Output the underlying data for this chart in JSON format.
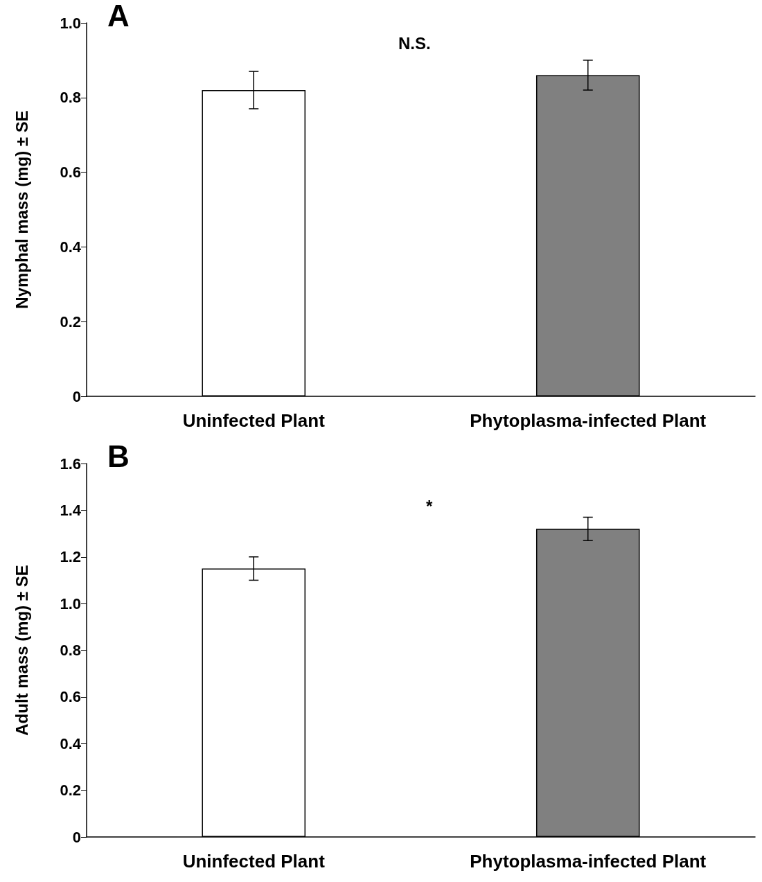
{
  "chart_data": [
    {
      "type": "bar",
      "categories": [
        "Uninfected Plant",
        "Phytoplasma-infected Plant"
      ],
      "values": [
        0.82,
        0.86
      ],
      "errors": [
        0.05,
        0.04
      ],
      "colors": [
        "#ffffff",
        "#808080"
      ],
      "ylabel": "Nymphal mass (mg) ± SE",
      "ylim": [
        0,
        1.0
      ],
      "yticks": [
        0,
        0.2,
        0.4,
        0.6,
        0.8,
        {
          "value": 1.0,
          "label": "1.0"
        }
      ],
      "annotations": [
        "A",
        "N.S."
      ]
    },
    {
      "type": "bar",
      "categories": [
        "Uninfected Plant",
        "Phytoplasma-infected Plant"
      ],
      "values": [
        1.15,
        1.32
      ],
      "errors": [
        0.05,
        0.05
      ],
      "colors": [
        "#ffffff",
        "#808080"
      ],
      "ylabel": "Adult mass (mg) ± SE",
      "ylim": [
        0,
        1.6
      ],
      "yticks": [
        0,
        0.2,
        0.4,
        0.6,
        0.8,
        {
          "value": 1.0,
          "label": "1.0"
        },
        1.2,
        1.4,
        1.6
      ],
      "annotations": [
        "B",
        "*"
      ]
    }
  ]
}
